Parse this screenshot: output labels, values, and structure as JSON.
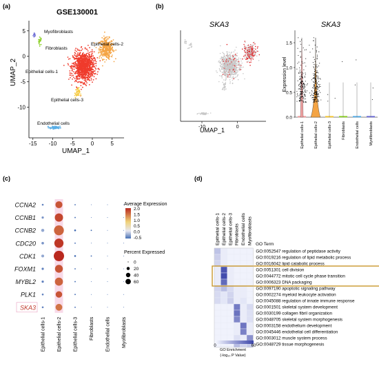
{
  "panels": {
    "a": {
      "label": "(a)"
    },
    "b": {
      "label": "(b)"
    },
    "c": {
      "label": "(c)"
    },
    "d": {
      "label": "(d)"
    }
  },
  "chart_data": [
    {
      "id": "a",
      "type": "scatter",
      "title": "GSE130001",
      "xlabel": "UMAP_1",
      "ylabel": "UMAP_2",
      "xlim": [
        -16,
        8
      ],
      "ylim": [
        -16,
        7
      ],
      "xticks": [
        -15,
        -10,
        -5,
        0,
        5
      ],
      "yticks": [
        5,
        0,
        -5,
        -10
      ],
      "clusters": [
        {
          "name": "Myofibroblasts",
          "color": "#6f6fd6",
          "center": [
            -14.6,
            4.2
          ],
          "spread": [
            0.3,
            0.5
          ],
          "n": 14
        },
        {
          "name": "Fibroblasts",
          "color": "#8ed12a",
          "center": [
            -13.2,
            3.0
          ],
          "spread": [
            0.4,
            0.7
          ],
          "n": 22
        },
        {
          "name": "Epithelial cells-2",
          "color": "#f4a444",
          "center": [
            3.5,
            1.5
          ],
          "spread": [
            1.6,
            1.8
          ],
          "n": 380
        },
        {
          "name": "Epithelial cells-1",
          "color": "#ef3b2c",
          "center": [
            -2.2,
            -2.0
          ],
          "spread": [
            2.4,
            2.6
          ],
          "n": 1100
        },
        {
          "name": "Epithelial cells-3",
          "color": "#f6c93b",
          "center": [
            -3.8,
            -7.2
          ],
          "spread": [
            0.6,
            0.9
          ],
          "n": 40
        },
        {
          "name": "Endothelial cells",
          "color": "#5aaee6",
          "center": [
            -9.5,
            -14.0
          ],
          "spread": [
            1.2,
            0.25
          ],
          "n": 70
        }
      ]
    },
    {
      "id": "b-umap",
      "type": "scatter",
      "title": "SKA3",
      "xlabel": "UMAP_1",
      "ylabel": "",
      "xlim": [
        -16,
        8
      ],
      "ylim": [
        -16,
        7
      ],
      "xticks": [
        -10,
        0
      ],
      "yticks": [],
      "series": [
        {
          "name": "",
          "color": "#c8c8c8"
        },
        {
          "name": "",
          "color": "#e0262a"
        }
      ]
    },
    {
      "id": "b-violin",
      "type": "violin",
      "title": "SKA3",
      "ylabel": "Expression level",
      "ylim": [
        0,
        1.75
      ],
      "yticks": [
        0.0,
        0.5,
        1.0,
        1.5
      ],
      "categories": [
        "Epithelial cells-1",
        "Epithelial cells-2",
        "Epithelial cells-3",
        "Fibroblasts",
        "Endothelial cells",
        "Myofibroblasts"
      ],
      "colors": [
        "#f0a0a0",
        "#f4a444",
        "#f6c93b",
        "#8ed12a",
        "#5aaee6",
        "#6f6fd6"
      ],
      "points": [
        180,
        210,
        3,
        1,
        2,
        2
      ]
    },
    {
      "id": "c",
      "type": "dotplot",
      "genes": [
        "CCNA2",
        "CCNB1",
        "CCNB2",
        "CDC20",
        "CDK1",
        "FOXM1",
        "MYBL2",
        "PLK1",
        "SKA3"
      ],
      "categories": [
        "Epithelial cells-1",
        "Epithelial cells-2",
        "Epithelial cells-3",
        "Fibroblasts",
        "Endothelial cells",
        "Myofibroblasts"
      ],
      "percent_expressed": [
        [
          2,
          30,
          1,
          0,
          0,
          0
        ],
        [
          3,
          42,
          1,
          0,
          0,
          0
        ],
        [
          6,
          60,
          2,
          1,
          0,
          0
        ],
        [
          4,
          52,
          1,
          0,
          0,
          0
        ],
        [
          5,
          66,
          2,
          1,
          0,
          0
        ],
        [
          3,
          38,
          1,
          0,
          0,
          0
        ],
        [
          3,
          40,
          1,
          0,
          0,
          0
        ],
        [
          2,
          26,
          1,
          0,
          0,
          0
        ],
        [
          2,
          28,
          1,
          0,
          0,
          0
        ]
      ],
      "average_expression": [
        [
          -0.4,
          1.7,
          -0.5,
          -0.5,
          -0.5,
          -0.5
        ],
        [
          -0.3,
          1.8,
          -0.5,
          -0.5,
          -0.5,
          -0.5
        ],
        [
          -0.2,
          1.6,
          -0.5,
          -0.5,
          -0.5,
          -0.5
        ],
        [
          -0.3,
          1.9,
          -0.5,
          -0.5,
          -0.5,
          -0.5
        ],
        [
          -0.2,
          2.0,
          -0.5,
          -0.5,
          -0.5,
          -0.5
        ],
        [
          -0.4,
          1.7,
          -0.5,
          -0.5,
          -0.5,
          -0.5
        ],
        [
          -0.4,
          1.6,
          -0.5,
          -0.5,
          -0.5,
          -0.5
        ],
        [
          -0.4,
          1.7,
          -0.5,
          -0.5,
          -0.5,
          -0.5
        ],
        [
          -0.4,
          1.5,
          -0.5,
          -0.5,
          -0.5,
          -0.5
        ]
      ],
      "highlight_gene": "SKA3",
      "color_legend": {
        "title": "Average Expression",
        "ticks": [
          "2.0",
          "1.5",
          "1.0",
          "0.5",
          "0.0",
          "-0.5"
        ]
      },
      "size_legend": {
        "title": "Percent Expressed",
        "values": [
          0,
          20,
          40,
          60
        ]
      }
    },
    {
      "id": "d",
      "type": "heatmap",
      "row_header": "GO Term",
      "columns": [
        "Epithelial cells-1",
        "Epithelial cells-2",
        "Epithelial cells-3",
        "Fibroblasts",
        "Endothelial cells",
        "Myofibroblasts"
      ],
      "rows": [
        {
          "id": "GO:0052547",
          "term": "regulation of peptidase activity"
        },
        {
          "id": "GO:0019216",
          "term": "regulation of lipid metabolic process"
        },
        {
          "id": "GO:0016042",
          "term": "lipid catabolic process"
        },
        {
          "id": "GO:0051301",
          "term": "cell division"
        },
        {
          "id": "GO:0044772",
          "term": "mitotic cell cycle phase transition"
        },
        {
          "id": "GO:0006323",
          "term": "DNA packaging"
        },
        {
          "id": "GO:0097190",
          "term": "apoptotic signaling pathway"
        },
        {
          "id": "GO:0002274",
          "term": "myeloid leukocyte activation"
        },
        {
          "id": "GO:0045088",
          "term": "regulation of innate immune response"
        },
        {
          "id": "GO:0001501",
          "term": "skeletal system development"
        },
        {
          "id": "GO:0030199",
          "term": "collagen fibril organization"
        },
        {
          "id": "GO:0048705",
          "term": "skeletal system morphogenesis"
        },
        {
          "id": "GO:0003158",
          "term": "endothelium development"
        },
        {
          "id": "GO:0045446",
          "term": "endothelial cell differentiation"
        },
        {
          "id": "GO:0003012",
          "term": "muscle system process"
        },
        {
          "id": "GO:0048729",
          "term": "tissue morphogenesis"
        }
      ],
      "values": [
        [
          18,
          4,
          2,
          2,
          2,
          2
        ],
        [
          14,
          4,
          2,
          2,
          2,
          2
        ],
        [
          12,
          4,
          2,
          2,
          2,
          2
        ],
        [
          4,
          55,
          4,
          2,
          2,
          2
        ],
        [
          4,
          58,
          4,
          2,
          2,
          2
        ],
        [
          4,
          48,
          4,
          2,
          2,
          2
        ],
        [
          12,
          20,
          10,
          4,
          4,
          2
        ],
        [
          10,
          6,
          12,
          4,
          4,
          2
        ],
        [
          10,
          6,
          14,
          4,
          6,
          2
        ],
        [
          2,
          2,
          2,
          42,
          4,
          10
        ],
        [
          2,
          2,
          2,
          45,
          4,
          8
        ],
        [
          2,
          2,
          2,
          38,
          4,
          8
        ],
        [
          2,
          2,
          2,
          4,
          44,
          4
        ],
        [
          2,
          2,
          2,
          4,
          40,
          4
        ],
        [
          2,
          2,
          2,
          8,
          4,
          35
        ],
        [
          2,
          2,
          2,
          20,
          12,
          16
        ]
      ],
      "highlight_rows": [
        3,
        4,
        5
      ],
      "colorbar": {
        "title": "GO Enrichment",
        "subtitle": "(-log₁₀ P Value)",
        "ticks": [
          "0",
          "60"
        ],
        "range": [
          0,
          60
        ]
      }
    }
  ]
}
